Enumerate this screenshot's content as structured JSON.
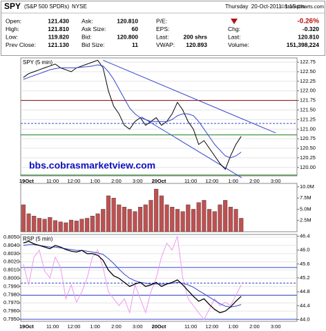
{
  "header": {
    "symbol": "SPY",
    "name": "(S&P 500 SPDRs)",
    "exchange": "NYSE",
    "timestamp": "Thursday  20-Oct-2011  1:15 pm",
    "source": "©StockCharts.com",
    "quote": [
      [
        {
          "label": "Open:",
          "value": "121.430"
        },
        {
          "label": "Ask:",
          "value": "120.810"
        },
        {
          "label": "P/E:"
        }
      ],
      [
        {
          "label": "High:",
          "value": "121.810"
        },
        {
          "label": "Ask Size:",
          "value": "60"
        },
        {
          "label": "EPS:"
        }
      ],
      [
        {
          "label": "Low:",
          "value": "119.820"
        },
        {
          "label": "Bid:",
          "value": "120.800"
        },
        {
          "label": "Last:",
          "value": "200 shrs"
        }
      ],
      [
        {
          "label": "Prev Close:",
          "value": "121.130"
        },
        {
          "label": "Bid Size:",
          "value": "11"
        },
        {
          "label": "VWAP:",
          "value": "120.893"
        }
      ]
    ],
    "summary": {
      "change_pct": "-0.26%",
      "rows": [
        {
          "label": "Chg:",
          "value": "-0.320"
        },
        {
          "label": "Last:",
          "value": "120.810"
        },
        {
          "label": "Volume:",
          "value": "151,398,224"
        }
      ]
    }
  },
  "chart_data": [
    {
      "type": "line",
      "label": "SPY (5 min)",
      "annotation": "bbs.cobrasmarketview.com",
      "grid": true,
      "categories": [
        "19Oct",
        null,
        null,
        null,
        null,
        null,
        "11:00",
        null,
        null,
        null,
        "12:00",
        null,
        null,
        null,
        "1:00",
        null,
        null,
        null,
        "2:00",
        null,
        null,
        null,
        "3:00",
        null,
        null,
        null,
        "20Oct",
        null,
        null,
        null,
        null,
        null,
        "11:00",
        null,
        null,
        null,
        "12:00",
        null,
        null,
        null,
        "1:00",
        null,
        null,
        null,
        "2:00",
        null,
        null,
        null,
        "3:00",
        null,
        null,
        null
      ],
      "series": [
        {
          "color": "#000000",
          "values": [
            122.35,
            122.45,
            122.5,
            122.55,
            122.6,
            122.65,
            122.7,
            122.6,
            122.55,
            122.5,
            122.6,
            122.65,
            122.7,
            122.75,
            122.8,
            122.6,
            122.0,
            121.6,
            121.4,
            121.1,
            121.0,
            121.2,
            121.3,
            121.1,
            121.2,
            121.3,
            121.1,
            121.2,
            121.4,
            121.7,
            121.5,
            121.2,
            121.0,
            120.6,
            120.7,
            120.5,
            120.3,
            120.1,
            119.95,
            120.3,
            120.6,
            120.81,
            null,
            null,
            null,
            null,
            null,
            null,
            null,
            null,
            null,
            null
          ]
        },
        {
          "color": "#3344cc",
          "values": [
            122.3,
            122.35,
            122.4,
            122.45,
            122.5,
            122.55,
            122.58,
            122.6,
            122.6,
            122.6,
            122.6,
            122.62,
            122.63,
            122.65,
            122.68,
            122.65,
            122.5,
            122.3,
            122.05,
            121.8,
            121.55,
            121.4,
            121.3,
            121.25,
            121.2,
            121.2,
            121.2,
            121.2,
            121.25,
            121.35,
            121.4,
            121.4,
            121.35,
            121.2,
            121.0,
            120.8,
            120.6,
            120.45,
            120.3,
            120.25,
            120.3,
            120.4,
            null,
            null,
            null,
            null,
            null,
            null,
            null,
            null,
            null,
            null
          ]
        }
      ],
      "ylim": [
        119.78,
        122.86
      ],
      "yticks": [
        {
          "value": 120,
          "label": "120.00"
        },
        {
          "value": 120.25,
          "label": "120.25"
        },
        {
          "value": 120.5,
          "label": "120.50"
        },
        {
          "value": 120.75,
          "label": "120.75"
        },
        {
          "value": 121,
          "label": "121.00"
        },
        {
          "value": 121.25,
          "label": "121.25"
        },
        {
          "value": 121.5,
          "label": "121.50"
        },
        {
          "value": 121.75,
          "label": "121.75"
        },
        {
          "value": 122,
          "label": "122.00"
        },
        {
          "value": 122.25,
          "label": "122.25"
        },
        {
          "value": 122.5,
          "label": "122.50"
        },
        {
          "value": 122.75,
          "label": "122.75"
        }
      ],
      "hlines": [
        {
          "value": 121.75,
          "color": "#8b0000"
        },
        {
          "value": 121.15,
          "color": "#3344cc",
          "dashed": true
        },
        {
          "value": 120.85,
          "color": "#1a7a1a"
        },
        {
          "value": 119.8,
          "color": "#1a7a1a"
        }
      ],
      "trendlines": [
        {
          "color": "#3344cc",
          "from": [
            15.5,
            122.8
          ],
          "to": [
            48,
            120.9
          ]
        },
        {
          "color": "#3344cc",
          "from": [
            22.7,
            121.32
          ],
          "to": [
            41.6,
            119.73
          ]
        }
      ]
    },
    {
      "type": "bar",
      "color": "#c05050",
      "values": [
        6,
        4,
        3.5,
        3,
        2.8,
        3.2,
        2.5,
        2.2,
        2,
        2.6,
        2.4,
        2.8,
        3,
        3.5,
        4,
        5,
        8,
        7.5,
        6,
        5.5,
        5,
        4.5,
        5.5,
        6,
        7,
        9.5,
        8,
        6,
        5.5,
        5,
        4.5,
        6,
        5,
        6.5,
        7,
        5,
        4.5,
        6,
        7,
        5.5,
        5,
        3,
        null,
        null,
        null,
        null,
        null,
        null,
        null,
        null,
        null,
        null
      ],
      "ylim": [
        0,
        10.75
      ],
      "yticks": [
        {
          "value": 2.5,
          "label": "2.5M"
        },
        {
          "value": 5,
          "label": "5.0M"
        },
        {
          "value": 7.5,
          "label": "7.5M"
        },
        {
          "value": 10,
          "label": "10.0M"
        }
      ]
    },
    {
      "type": "line",
      "label": "RSP (5 min)",
      "grid": true,
      "categories": [
        "19Oct",
        null,
        null,
        null,
        null,
        null,
        "11:00",
        null,
        null,
        null,
        "12:00",
        null,
        null,
        null,
        "1:00",
        null,
        null,
        null,
        "2:00",
        null,
        null,
        null,
        "3:00",
        null,
        null,
        null,
        "20Oct",
        null,
        null,
        null,
        null,
        null,
        "11:00",
        null,
        null,
        null,
        "12:00",
        null,
        null,
        null,
        "1:00",
        null,
        null,
        null,
        "2:00",
        null,
        null,
        null,
        "3:00",
        null,
        null,
        null
      ],
      "series": [
        {
          "color": "#ee99ee",
          "axis": "y2",
          "values": [
            45.6,
            45.0,
            45.8,
            46.0,
            45.4,
            45.2,
            45.8,
            45.5,
            44.6,
            45.0,
            44.5,
            44.8,
            45.2,
            45.8,
            46.0,
            45.5,
            44.8,
            44.6,
            44.4,
            44.6,
            44.2,
            45.0,
            44.6,
            44.2,
            44.8,
            45.2,
            45.8,
            46.2,
            46.0,
            46.4,
            45.2,
            44.6,
            44.4,
            44.2,
            44.0,
            44.3,
            44.6,
            44.4,
            44.5,
            44.4,
            44.7,
            45.0,
            null,
            null,
            null,
            null,
            null,
            null,
            null,
            null,
            null,
            null
          ]
        },
        {
          "color": "#3344cc",
          "values": [
            0.804,
            0.8041,
            0.8041,
            0.804,
            0.8039,
            0.8038,
            0.8038,
            0.8037,
            0.8036,
            0.8035,
            0.8034,
            0.8034,
            0.8033,
            0.8032,
            0.8031,
            0.8029,
            0.8024,
            0.8018,
            0.8011,
            0.8005,
            0.8,
            0.7997,
            0.7995,
            0.7994,
            0.7993,
            0.7993,
            0.7993,
            0.7993,
            0.7994,
            0.7995,
            0.7994,
            0.7992,
            0.7989,
            0.7985,
            0.7981,
            0.7977,
            0.7973,
            0.7969,
            0.7966,
            0.7965,
            0.7966,
            0.7968,
            null,
            null,
            null,
            null,
            null,
            null,
            null,
            null,
            null,
            null
          ]
        },
        {
          "color": "#000000",
          "values": [
            0.8043,
            0.8045,
            0.8042,
            0.804,
            0.8038,
            0.8036,
            0.804,
            0.8038,
            0.8035,
            0.8033,
            0.8032,
            0.8034,
            0.803,
            0.803,
            0.8028,
            0.8022,
            0.801,
            0.8003,
            0.8,
            0.7995,
            0.799,
            0.7993,
            0.7995,
            0.799,
            0.7992,
            0.7995,
            0.799,
            0.7993,
            0.7995,
            0.7998,
            0.7992,
            0.7985,
            0.7978,
            0.7972,
            0.7975,
            0.7968,
            0.7962,
            0.7958,
            0.796,
            0.7965,
            0.7972,
            0.7978,
            null,
            null,
            null,
            null,
            null,
            null,
            null,
            null,
            null,
            null
          ]
        }
      ],
      "ylim": [
        0.79475,
        0.80534
      ],
      "yticks": [
        {
          "value": 0.795,
          "label": "0.7950"
        },
        {
          "value": 0.796,
          "label": "0.7960"
        },
        {
          "value": 0.797,
          "label": "0.7970"
        },
        {
          "value": 0.798,
          "label": "0.7980"
        },
        {
          "value": 0.799,
          "label": "0.7990"
        },
        {
          "value": 0.8,
          "label": "0.8000"
        },
        {
          "value": 0.801,
          "label": "0.8010"
        },
        {
          "value": 0.802,
          "label": "0.8020"
        },
        {
          "value": 0.803,
          "label": "0.8030"
        },
        {
          "value": 0.804,
          "label": "0.8040"
        },
        {
          "value": 0.805,
          "label": "0.8050"
        }
      ],
      "y2lim": [
        43.95,
        46.45
      ],
      "y2ticks": [
        {
          "value": 44,
          "label": "44.0"
        },
        {
          "value": 44.4,
          "label": "44.4"
        },
        {
          "value": 44.8,
          "label": "44.8"
        },
        {
          "value": 45.2,
          "label": "45.2"
        },
        {
          "value": 45.6,
          "label": "45.6"
        },
        {
          "value": 46,
          "label": "46.0"
        },
        {
          "value": 46.4,
          "label": "46.4"
        }
      ],
      "hlines": [
        {
          "value": 45.5,
          "color": "#3344cc",
          "axis": "y2"
        },
        {
          "value": 45.05,
          "color": "#3344cc",
          "axis": "y2",
          "dashed": true
        },
        {
          "value": 44.7,
          "color": "#3344cc",
          "axis": "y2"
        },
        {
          "value": 44.01,
          "color": "#3344cc",
          "axis": "y2"
        }
      ]
    }
  ]
}
